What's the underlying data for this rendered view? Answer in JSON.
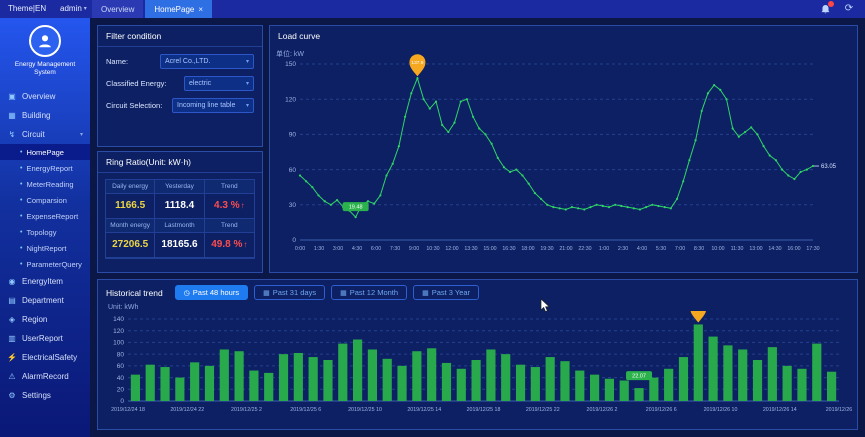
{
  "topbar": {
    "brand": "Theme|EN",
    "user": "admin",
    "tabs": [
      {
        "label": "Overview",
        "active": false
      },
      {
        "label": "HomePage",
        "active": true
      }
    ]
  },
  "sidebar": {
    "app_title": "Energy Management System",
    "items": [
      {
        "label": "Overview",
        "icon": "overview-icon"
      },
      {
        "label": "Building",
        "icon": "building-icon"
      },
      {
        "label": "Circuit",
        "icon": "circuit-icon",
        "expanded": true,
        "children": [
          "HomePage",
          "EnergyReport",
          "MeterReading",
          "Comparsion",
          "ExpenseReport",
          "Topology",
          "NightReport",
          "ParameterQuery"
        ],
        "active_child": "HomePage"
      },
      {
        "label": "EnergyItem",
        "icon": "energyitem-icon"
      },
      {
        "label": "Department",
        "icon": "department-icon"
      },
      {
        "label": "Region",
        "icon": "region-icon"
      },
      {
        "label": "UserReport",
        "icon": "userreport-icon"
      },
      {
        "label": "ElectricalSafety",
        "icon": "electricalsafety-icon"
      },
      {
        "label": "AlarmRecord",
        "icon": "alarmrecord-icon"
      },
      {
        "label": "Settings",
        "icon": "settings-icon"
      }
    ]
  },
  "filter": {
    "title": "Filter condition",
    "fields": [
      {
        "label": "Name:",
        "value": "Acrel Co.,LTD."
      },
      {
        "label": "Classified Energy:",
        "value": "electric"
      },
      {
        "label": "Circuit Selection:",
        "value": "Incoming line table"
      }
    ]
  },
  "ring_ratio": {
    "title": "Ring Ratio(Unit: kW·h)",
    "rows": [
      [
        {
          "header": "Daily energy",
          "value": "1166.5",
          "style": "yellow"
        },
        {
          "header": "Yesterday",
          "value": "1118.4",
          "style": "white"
        },
        {
          "header": "Trend",
          "value": "4.3 %",
          "style": "red-up"
        }
      ],
      [
        {
          "header": "Month energy",
          "value": "27206.5",
          "style": "yellow"
        },
        {
          "header": "Lastmonth",
          "value": "18165.6",
          "style": "white"
        },
        {
          "header": "Trend",
          "value": "49.8 %",
          "style": "red-up"
        }
      ]
    ]
  },
  "load_curve": {
    "title": "Load curve"
  },
  "historical": {
    "title": "Historical trend",
    "buttons": [
      {
        "label": "Past 48 hours",
        "active": true,
        "icon": "clock-icon"
      },
      {
        "label": "Past 31 days",
        "active": false,
        "icon": "calendar-icon"
      },
      {
        "label": "Past 12 Month",
        "active": false,
        "icon": "calendar-icon"
      },
      {
        "label": "Past 3 Year",
        "active": false,
        "icon": "calendar-icon"
      }
    ],
    "unit_label": "Unit: kWh"
  },
  "chart_data": [
    {
      "type": "line",
      "title": "Load curve",
      "unit_label": "单位: kW",
      "ylabel": "kW",
      "ylim": [
        0,
        150
      ],
      "yticks": [
        0,
        30,
        60,
        90,
        120,
        150
      ],
      "grid": "dashed",
      "line_color": "#2fd566",
      "x_tick_labels": [
        "0:00",
        "1:30",
        "3:00",
        "4:30",
        "6:00",
        "7:30",
        "9:00",
        "10:30",
        "12:00",
        "13:30",
        "15:00",
        "16:30",
        "18:00",
        "19:30",
        "21:00",
        "22:30",
        "1:00",
        "2:30",
        "4:00",
        "5:30",
        "7:00",
        "8:30",
        "10:00",
        "11:30",
        "13:00",
        "14:30",
        "16:00",
        "17:30"
      ],
      "values": [
        55,
        50,
        45,
        38,
        33,
        30,
        34,
        28,
        25,
        19.48,
        30,
        33,
        31,
        38,
        55,
        65,
        80,
        105,
        125,
        137.9,
        120,
        112,
        118,
        98,
        92,
        100,
        118,
        120,
        105,
        95,
        90,
        82,
        70,
        62,
        58,
        60,
        55,
        48,
        40,
        35,
        30,
        28,
        27,
        26,
        28,
        27,
        26,
        28,
        30,
        29,
        28,
        30,
        29,
        28,
        27,
        26,
        28,
        30,
        29,
        28,
        27,
        35,
        50,
        68,
        85,
        110,
        125,
        132,
        128,
        120,
        95,
        88,
        92,
        96,
        90,
        80,
        72,
        68,
        60,
        55,
        52,
        58,
        60,
        63.05
      ],
      "max_marker": {
        "value": "137.9",
        "color": "#f6a821"
      },
      "min_marker": {
        "value": "19.48",
        "color": "#2bb24c"
      },
      "end_label": "63.05"
    },
    {
      "type": "bar",
      "title": "Historical trend",
      "ylabel": "kWh",
      "ylim": [
        0,
        140
      ],
      "yticks": [
        0,
        20,
        40,
        60,
        80,
        100,
        120,
        140
      ],
      "grid": "dashed",
      "bar_color": "#28a94c",
      "x_tick_labels": [
        "2019/12/24 18",
        "2019/12/24 22",
        "2019/12/25 2",
        "2019/12/25 6",
        "2019/12/25 10",
        "2019/12/25 14",
        "2019/12/25 18",
        "2019/12/25 22",
        "2019/12/26 2",
        "2019/12/26 6",
        "2019/12/26 10",
        "2019/12/26 14",
        "2019/12/26"
      ],
      "values": [
        45,
        62,
        58,
        40,
        66,
        60,
        88,
        85,
        52,
        48,
        80,
        82,
        75,
        70,
        98,
        105,
        88,
        72,
        60,
        85,
        90,
        65,
        55,
        70,
        88,
        80,
        62,
        58,
        75,
        68,
        52,
        45,
        38,
        35,
        22.07,
        40,
        55,
        75,
        130.7,
        110,
        95,
        88,
        70,
        92,
        60,
        55,
        98,
        50
      ],
      "max_marker": {
        "value": "130.7",
        "color": "#f6a821"
      },
      "min_marker": {
        "value": "22.07",
        "color": "#2bb24c"
      }
    }
  ],
  "colors": {
    "accent": "#1f7cf0",
    "green": "#2fd566",
    "red": "#ff4d4d",
    "yellow": "#ecd645"
  }
}
